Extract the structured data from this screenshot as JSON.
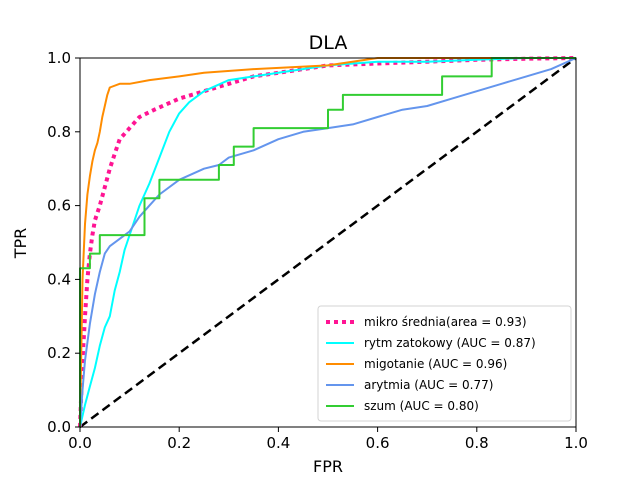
{
  "chart_data": {
    "type": "line",
    "title": "DLA",
    "xlabel": "FPR",
    "ylabel": "TPR",
    "xlim": [
      0.0,
      1.0
    ],
    "ylim": [
      0.0,
      1.0
    ],
    "xticks": [
      "0.0",
      "0.2",
      "0.4",
      "0.6",
      "0.8",
      "1.0"
    ],
    "yticks": [
      "0.0",
      "0.2",
      "0.4",
      "0.6",
      "0.8",
      "1.0"
    ],
    "grid": false,
    "legend_position": "lower-right",
    "diagonal": {
      "x": [
        0,
        1
      ],
      "y": [
        0,
        1
      ],
      "style": "dashed",
      "color": "#000000"
    },
    "series": [
      {
        "name": "mikro średnia(area = 0.93)",
        "color": "#ff1493",
        "style": "dotted",
        "x": [
          0.0,
          0.005,
          0.01,
          0.015,
          0.02,
          0.025,
          0.03,
          0.04,
          0.05,
          0.06,
          0.07,
          0.08,
          0.1,
          0.12,
          0.15,
          0.2,
          0.25,
          0.3,
          0.35,
          0.4,
          0.5,
          0.6,
          0.7,
          0.8,
          0.9,
          1.0
        ],
        "y": [
          0.0,
          0.18,
          0.3,
          0.4,
          0.47,
          0.52,
          0.56,
          0.6,
          0.65,
          0.7,
          0.74,
          0.78,
          0.81,
          0.84,
          0.86,
          0.89,
          0.91,
          0.93,
          0.95,
          0.96,
          0.98,
          0.985,
          0.99,
          0.995,
          0.998,
          1.0
        ]
      },
      {
        "name": "rytm zatokowy (AUC = 0.87)",
        "color": "#00ffff",
        "style": "solid",
        "x": [
          0.0,
          0.005,
          0.01,
          0.02,
          0.03,
          0.04,
          0.05,
          0.06,
          0.07,
          0.08,
          0.09,
          0.1,
          0.12,
          0.14,
          0.16,
          0.18,
          0.2,
          0.22,
          0.25,
          0.3,
          0.35,
          0.4,
          0.5,
          0.6,
          0.7,
          0.8,
          0.9,
          1.0
        ],
        "y": [
          0.0,
          0.03,
          0.06,
          0.11,
          0.16,
          0.22,
          0.27,
          0.3,
          0.37,
          0.42,
          0.48,
          0.52,
          0.6,
          0.66,
          0.73,
          0.8,
          0.85,
          0.88,
          0.91,
          0.94,
          0.95,
          0.96,
          0.98,
          0.99,
          0.99,
          0.995,
          1.0,
          1.0
        ]
      },
      {
        "name": "migotanie (AUC = 0.96)",
        "color": "#ff8c00",
        "style": "solid",
        "x": [
          0.0,
          0.005,
          0.01,
          0.015,
          0.02,
          0.025,
          0.03,
          0.035,
          0.04,
          0.045,
          0.05,
          0.055,
          0.06,
          0.08,
          0.1,
          0.14,
          0.2,
          0.25,
          0.35,
          0.5,
          0.6,
          0.8,
          1.0
        ],
        "y": [
          0.0,
          0.4,
          0.55,
          0.63,
          0.68,
          0.72,
          0.75,
          0.77,
          0.8,
          0.84,
          0.87,
          0.9,
          0.92,
          0.93,
          0.93,
          0.94,
          0.95,
          0.96,
          0.97,
          0.98,
          1.0,
          1.0,
          1.0
        ]
      },
      {
        "name": "arytmia (AUC = 0.77)",
        "color": "#6495ed",
        "style": "solid",
        "x": [
          0.0,
          0.005,
          0.01,
          0.02,
          0.03,
          0.04,
          0.05,
          0.06,
          0.08,
          0.1,
          0.12,
          0.14,
          0.16,
          0.2,
          0.25,
          0.28,
          0.3,
          0.35,
          0.4,
          0.45,
          0.5,
          0.55,
          0.6,
          0.65,
          0.7,
          0.75,
          0.8,
          0.85,
          0.9,
          0.95,
          1.0
        ],
        "y": [
          0.0,
          0.1,
          0.18,
          0.28,
          0.36,
          0.42,
          0.47,
          0.49,
          0.51,
          0.53,
          0.57,
          0.6,
          0.63,
          0.67,
          0.7,
          0.71,
          0.73,
          0.75,
          0.78,
          0.8,
          0.81,
          0.82,
          0.84,
          0.86,
          0.87,
          0.89,
          0.91,
          0.93,
          0.95,
          0.97,
          1.0
        ]
      },
      {
        "name": "szum (AUC = 0.80)",
        "color": "#32cd32",
        "style": "solid",
        "step": true,
        "x": [
          0.0,
          0.0,
          0.02,
          0.02,
          0.04,
          0.04,
          0.06,
          0.06,
          0.13,
          0.13,
          0.16,
          0.16,
          0.28,
          0.28,
          0.31,
          0.31,
          0.35,
          0.35,
          0.5,
          0.5,
          0.53,
          0.53,
          0.73,
          0.73,
          0.83,
          0.83,
          1.0
        ],
        "y": [
          0.0,
          0.43,
          0.43,
          0.47,
          0.47,
          0.52,
          0.52,
          0.52,
          0.52,
          0.62,
          0.62,
          0.67,
          0.67,
          0.71,
          0.71,
          0.76,
          0.76,
          0.81,
          0.81,
          0.86,
          0.86,
          0.9,
          0.9,
          0.95,
          0.95,
          1.0,
          1.0
        ]
      }
    ]
  }
}
